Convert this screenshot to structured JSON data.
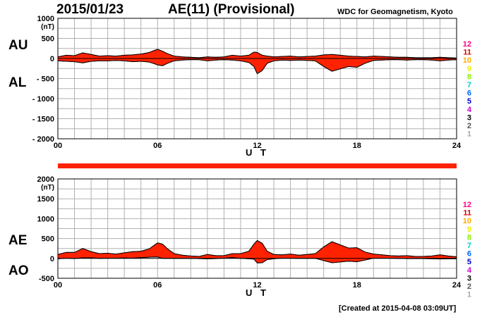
{
  "header": {
    "date": "2015/01/23",
    "title": "AE(11) (Provisional)",
    "source": "WDC for Geomagnetism, Kyoto"
  },
  "footer": {
    "created": "[Created at 2015-04-08 03:09UT]"
  },
  "colors": {
    "fill": "#ff2200",
    "grid": "#b0b0b0",
    "bar": "#ff2200",
    "scale_colors": [
      "#ff0088",
      "#dd0000",
      "#ffaa00",
      "#eeee00",
      "#88ee00",
      "#00cccc",
      "#0066ff",
      "#0000cc",
      "#cc00cc",
      "#000000",
      "#555555",
      "#aaaaaa"
    ]
  },
  "scale_labels": [
    "12",
    "11",
    "10",
    "9",
    "8",
    "7",
    "6",
    "5",
    "4",
    "3",
    "2",
    "1"
  ],
  "chart_data": [
    {
      "type": "area",
      "name": "AU/AL",
      "label_upper": "AU",
      "label_lower": "AL",
      "unit": "(nT)",
      "xlabel": "U T",
      "xlim": [
        0,
        24
      ],
      "ylim": [
        -2000,
        1000
      ],
      "xticks": [
        "00",
        "06",
        "12",
        "18",
        "24"
      ],
      "xtick_values": [
        0,
        6,
        12,
        18,
        24
      ],
      "yticks": [
        "1000",
        "500",
        "0",
        "- 500",
        "- 1000",
        "- 1500",
        "- 2000"
      ],
      "ytick_values": [
        1000,
        500,
        0,
        -500,
        -1000,
        -1500,
        -2000
      ],
      "upper_series": {
        "name": "AU",
        "x": [
          0,
          0.5,
          1,
          1.5,
          2,
          2.5,
          3,
          3.5,
          4,
          4.5,
          5,
          5.5,
          5.8,
          6,
          6.3,
          6.6,
          7,
          7.5,
          8,
          8.5,
          9,
          9.5,
          10,
          10.5,
          11,
          11.5,
          11.8,
          12,
          12.3,
          12.6,
          13,
          13.5,
          14,
          14.5,
          15,
          15.5,
          16,
          16.5,
          17,
          17.5,
          18,
          18.5,
          19,
          19.5,
          20,
          20.5,
          21,
          21.5,
          22,
          22.5,
          23,
          23.5,
          24
        ],
        "values": [
          40,
          80,
          70,
          140,
          100,
          60,
          70,
          60,
          80,
          90,
          110,
          150,
          200,
          230,
          180,
          120,
          60,
          40,
          30,
          20,
          40,
          30,
          40,
          80,
          60,
          80,
          160,
          150,
          80,
          60,
          40,
          50,
          60,
          40,
          50,
          60,
          90,
          100,
          80,
          60,
          50,
          40,
          60,
          50,
          40,
          30,
          30,
          20,
          20,
          20,
          30,
          20,
          10
        ]
      },
      "lower_series": {
        "name": "AL",
        "x": [
          0,
          0.5,
          1,
          1.5,
          2,
          2.5,
          3,
          3.5,
          4,
          4.5,
          5,
          5.5,
          5.8,
          6,
          6.3,
          6.6,
          7,
          7.5,
          8,
          8.5,
          9,
          9.5,
          10,
          10.5,
          11,
          11.5,
          11.8,
          12,
          12.3,
          12.6,
          13,
          13.5,
          14,
          14.5,
          15,
          15.5,
          16,
          16.5,
          17,
          17.5,
          18,
          18.5,
          19,
          19.5,
          20,
          20.5,
          21,
          21.5,
          22,
          22.5,
          23,
          23.5,
          24
        ],
        "values": [
          -60,
          -70,
          -80,
          -110,
          -70,
          -60,
          -60,
          -50,
          -60,
          -80,
          -70,
          -90,
          -130,
          -160,
          -180,
          -120,
          -60,
          -40,
          -30,
          -30,
          -60,
          -40,
          -30,
          -40,
          -60,
          -100,
          -200,
          -380,
          -300,
          -120,
          -60,
          -40,
          -50,
          -40,
          -50,
          -60,
          -200,
          -320,
          -260,
          -200,
          -220,
          -120,
          -50,
          -40,
          -30,
          -30,
          -40,
          -30,
          -30,
          -40,
          -60,
          -40,
          -30
        ]
      }
    },
    {
      "type": "area",
      "name": "AE/AO",
      "label_upper": "AE",
      "label_lower": "AO",
      "unit": "(nT)",
      "xlabel": "U T",
      "xlim": [
        0,
        24
      ],
      "ylim": [
        -500,
        2000
      ],
      "xticks": [
        "00",
        "06",
        "12",
        "18",
        "24"
      ],
      "xtick_values": [
        0,
        6,
        12,
        18,
        24
      ],
      "yticks": [
        "2000",
        "1500",
        "1000",
        "500",
        "0",
        "-500"
      ],
      "ytick_values": [
        2000,
        1500,
        1000,
        500,
        0,
        -500
      ],
      "upper_series": {
        "name": "AE",
        "x": [
          0,
          0.5,
          1,
          1.5,
          2,
          2.5,
          3,
          3.5,
          4,
          4.5,
          5,
          5.5,
          5.8,
          6,
          6.3,
          6.6,
          7,
          7.5,
          8,
          8.5,
          9,
          9.5,
          10,
          10.5,
          11,
          11.5,
          11.8,
          12,
          12.3,
          12.6,
          13,
          13.5,
          14,
          14.5,
          15,
          15.5,
          16,
          16.5,
          17,
          17.5,
          18,
          18.5,
          19,
          19.5,
          20,
          20.5,
          21,
          21.5,
          22,
          22.5,
          23,
          23.5,
          24
        ],
        "values": [
          100,
          150,
          150,
          250,
          170,
          120,
          130,
          110,
          140,
          170,
          180,
          240,
          330,
          390,
          360,
          240,
          120,
          80,
          60,
          50,
          100,
          70,
          70,
          120,
          120,
          180,
          360,
          450,
          380,
          180,
          100,
          90,
          110,
          80,
          100,
          120,
          290,
          420,
          340,
          260,
          270,
          160,
          110,
          90,
          70,
          60,
          70,
          50,
          50,
          60,
          90,
          60,
          40
        ]
      },
      "lower_series": {
        "name": "AO",
        "x": [
          0,
          0.5,
          1,
          1.5,
          2,
          2.5,
          3,
          3.5,
          4,
          4.5,
          5,
          5.5,
          5.8,
          6,
          6.3,
          6.6,
          7,
          7.5,
          8,
          8.5,
          9,
          9.5,
          10,
          10.5,
          11,
          11.5,
          11.8,
          12,
          12.3,
          12.6,
          13,
          13.5,
          14,
          14.5,
          15,
          15.5,
          16,
          16.5,
          17,
          17.5,
          18,
          18.5,
          19,
          19.5,
          20,
          20.5,
          21,
          21.5,
          22,
          22.5,
          23,
          23.5,
          24
        ],
        "values": [
          -10,
          5,
          -5,
          15,
          15,
          0,
          5,
          5,
          10,
          5,
          20,
          30,
          35,
          35,
          0,
          0,
          0,
          0,
          0,
          -5,
          -10,
          -5,
          5,
          20,
          0,
          -10,
          -20,
          -115,
          -110,
          -30,
          -10,
          5,
          5,
          0,
          0,
          0,
          -55,
          -110,
          -90,
          -70,
          -85,
          -40,
          5,
          5,
          5,
          0,
          -5,
          -5,
          -5,
          -10,
          -15,
          -10,
          -10
        ]
      }
    }
  ]
}
